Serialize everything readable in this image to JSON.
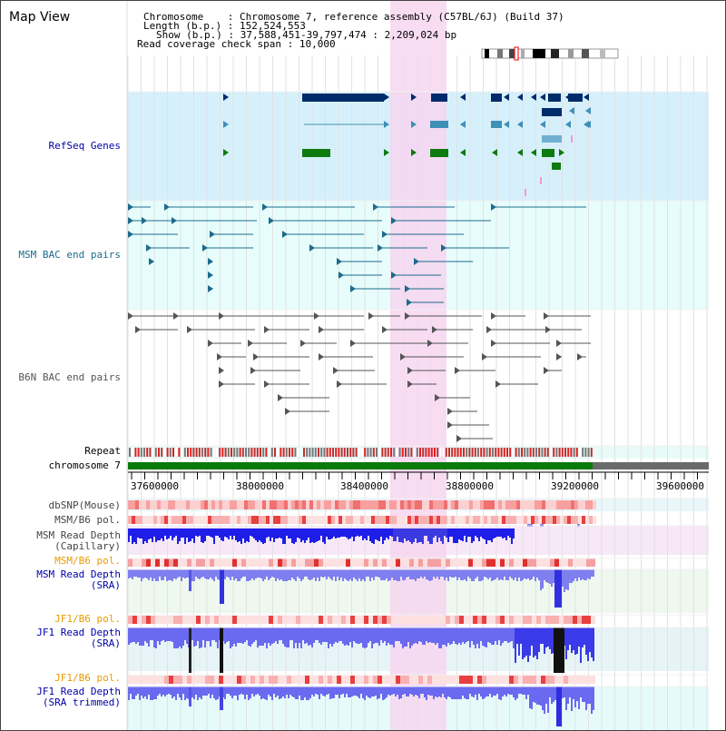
{
  "view_title": "Map View",
  "header": {
    "chromosome_label": "Chromosome",
    "chromosome_value": "Chromosome 7, reference assembly (C57BL/6J) (Build 37)",
    "length_label": "Length (b.p.)",
    "length_value": "152,524,553",
    "show_label": "Show (b.p.)",
    "show_value": "37,588,451-39,797,474 : 2,209,024 bp",
    "coverage_label": "Read coverage check span",
    "coverage_value": "10,000"
  },
  "tracks": {
    "refseq": "RefSeq Genes",
    "msm_bac": "MSM BAC end pairs",
    "b6n_bac": "B6N BAC end pairs",
    "repeat": "Repeat",
    "chromosome": "chromosome 7",
    "dbsnp": "dbSNP(Mouse)",
    "msm_b6_pol": "MSM/B6 pol.",
    "msm_depth_cap_1": "MSM Read Depth",
    "msm_depth_cap_2": "(Capillary)",
    "msm_b6_pol_2": "MSM/B6 pol.",
    "msm_depth_sra_1": "MSM Read Depth",
    "msm_depth_sra_2": "(SRA)",
    "jf1_b6_pol": "JF1/B6 pol.",
    "jf1_depth_sra_1": "JF1 Read Depth",
    "jf1_depth_sra_2": "(SRA)",
    "jf1_b6_pol_2": "JF1/B6 pol.",
    "jf1_depth_trim_1": "JF1 Read Depth",
    "jf1_depth_trim_2": "(SRA trimmed)"
  },
  "axis_ticks": [
    "37600000",
    "38000000",
    "38400000",
    "38800000",
    "39200000",
    "39600000"
  ],
  "colors": {
    "refseq_bg": "#d6f0fb",
    "bac_bg": "#e6fdfb",
    "highlight": "#f6d6f0",
    "gene_dark": "#002b6b",
    "gene_mid": "#3f8fb6",
    "gene_green": "#0f7a0f",
    "msm_bac": "#1d6a8c",
    "b6n_bac": "#555555",
    "chrom_green": "#0a7a0a",
    "depth_blue": "#2a2aee",
    "depth_light": "#7b7bee",
    "pol_red": "#e83030",
    "orange_label": "#e89a00",
    "navy_label": "#0000aa"
  }
}
